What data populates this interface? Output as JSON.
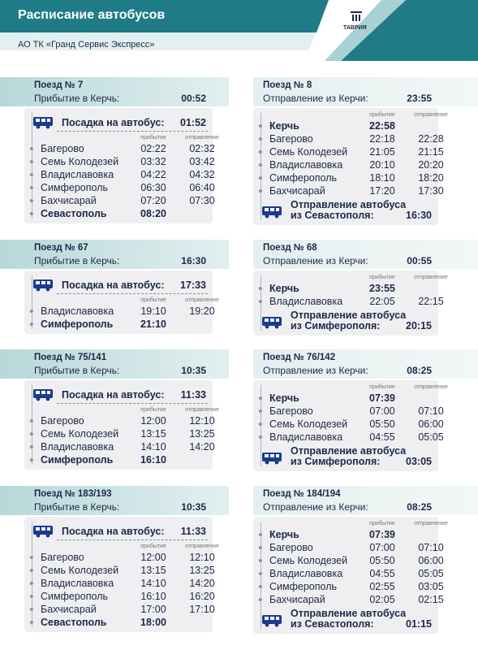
{
  "header": {
    "title": "Расписание автобусов",
    "subtitle": "АО ТК «Гранд Сервис Экспресс»",
    "logo": "ТАВРИЯ"
  },
  "labels": {
    "arrival": "прибытие",
    "departure": "отправление",
    "boarding": "Посадка на автобус:"
  },
  "rows": [
    {
      "to": {
        "train": "Поезд № 7",
        "direction": "Прибытие в Керчь:",
        "time": "00:52",
        "bus_time": "01:52",
        "stops": [
          {
            "name": "Багерово",
            "arrival": "02:22",
            "departure": "02:32"
          },
          {
            "name": "Семь Колодезей",
            "arrival": "03:32",
            "departure": "03:42"
          },
          {
            "name": "Владиславовка",
            "arrival": "04:22",
            "departure": "04:32"
          },
          {
            "name": "Симферополь",
            "arrival": "06:30",
            "departure": "06:40"
          },
          {
            "name": "Бахчисарай",
            "arrival": "07:20",
            "departure": "07:30"
          },
          {
            "name": "Севастополь",
            "arrival": "08:20"
          }
        ]
      },
      "from": {
        "train": "Поезд № 8",
        "direction": "Отправление из Керчи:",
        "time": "23:55",
        "stops": [
          {
            "name": "Керчь",
            "arrival": "22:58"
          },
          {
            "name": "Багерово",
            "arrival": "22:18",
            "departure": "22:28"
          },
          {
            "name": "Семь Колодезей",
            "arrival": "21:05",
            "departure": "21:15"
          },
          {
            "name": "Владиславовка",
            "arrival": "20:10",
            "departure": "20:20"
          },
          {
            "name": "Симферополь",
            "arrival": "18:10",
            "departure": "18:20"
          },
          {
            "name": "Бахчисарай",
            "arrival": "17:20",
            "departure": "17:30"
          }
        ],
        "bus_label": [
          "Отправление автобуса",
          "из Севастополя:"
        ],
        "bus_time": "16:30"
      }
    },
    {
      "to": {
        "train": "Поезд № 67",
        "direction": "Прибытие в Керчь:",
        "time": "16:30",
        "bus_time": "17:33",
        "stops": [
          {
            "name": "Владиславовка",
            "arrival": "19:10",
            "departure": "19:20"
          },
          {
            "name": "Симферополь",
            "arrival": "21:10"
          }
        ]
      },
      "from": {
        "train": "Поезд № 68",
        "direction": "Отправление из Керчи:",
        "time": "00:55",
        "stops": [
          {
            "name": "Керчь",
            "arrival": "23:55"
          },
          {
            "name": "Владиславовка",
            "arrival": "22:05",
            "departure": "22:15"
          }
        ],
        "bus_label": [
          "Отправление автобуса",
          "из Симферополя:"
        ],
        "bus_time": "20:15"
      }
    },
    {
      "to": {
        "train": "Поезд № 75/141",
        "direction": "Прибытие в Керчь:",
        "time": "10:35",
        "bus_time": "11:33",
        "stops": [
          {
            "name": "Багерово",
            "arrival": "12:00",
            "departure": "12:10"
          },
          {
            "name": "Семь Колодезей",
            "arrival": "13:15",
            "departure": "13:25"
          },
          {
            "name": "Владиславовка",
            "arrival": "14:10",
            "departure": "14:20"
          },
          {
            "name": "Симферополь",
            "arrival": "16:10"
          }
        ]
      },
      "from": {
        "train": "Поезд № 76/142",
        "direction": "Отправление из Керчи:",
        "time": "08:25",
        "stops": [
          {
            "name": "Керчь",
            "arrival": "07:39"
          },
          {
            "name": "Багерово",
            "arrival": "07:00",
            "departure": "07:10"
          },
          {
            "name": "Семь Колодезей",
            "arrival": "05:50",
            "departure": "06:00"
          },
          {
            "name": "Владиславовка",
            "arrival": "04:55",
            "departure": "05:05"
          }
        ],
        "bus_label": [
          "Отправление автобуса",
          "из Симферополя:"
        ],
        "bus_time": "03:05"
      }
    },
    {
      "to": {
        "train": "Поезд № 183/193",
        "direction": "Прибытие в Керчь:",
        "time": "10:35",
        "bus_time": "11:33",
        "stops": [
          {
            "name": "Багерово",
            "arrival": "12:00",
            "departure": "12:10"
          },
          {
            "name": "Семь Колодезей",
            "arrival": "13:15",
            "departure": "13:25"
          },
          {
            "name": "Владиславовка",
            "arrival": "14:10",
            "departure": "14:20"
          },
          {
            "name": "Симферополь",
            "arrival": "16:10",
            "departure": "16:20"
          },
          {
            "name": "Бахчисарай",
            "arrival": "17:00",
            "departure": "17:10"
          },
          {
            "name": "Севастополь",
            "arrival": "18:00"
          }
        ]
      },
      "from": {
        "train": "Поезд № 184/194",
        "direction": "Отправление из Керчи:",
        "time": "08:25",
        "stops": [
          {
            "name": "Керчь",
            "arrival": "07:39"
          },
          {
            "name": "Багерово",
            "arrival": "07:00",
            "departure": "07:10"
          },
          {
            "name": "Семь Колодезей",
            "arrival": "05:50",
            "departure": "06:00"
          },
          {
            "name": "Владиславовка",
            "arrival": "04:55",
            "departure": "05:05"
          },
          {
            "name": "Симферополь",
            "arrival": "02:55",
            "departure": "03:05"
          },
          {
            "name": "Бахчисарай",
            "arrival": "02:05",
            "departure": "02:15"
          }
        ],
        "bus_label": [
          "Отправление автобуса",
          "из Севастополя:"
        ],
        "bus_time": "01:15"
      }
    }
  ]
}
